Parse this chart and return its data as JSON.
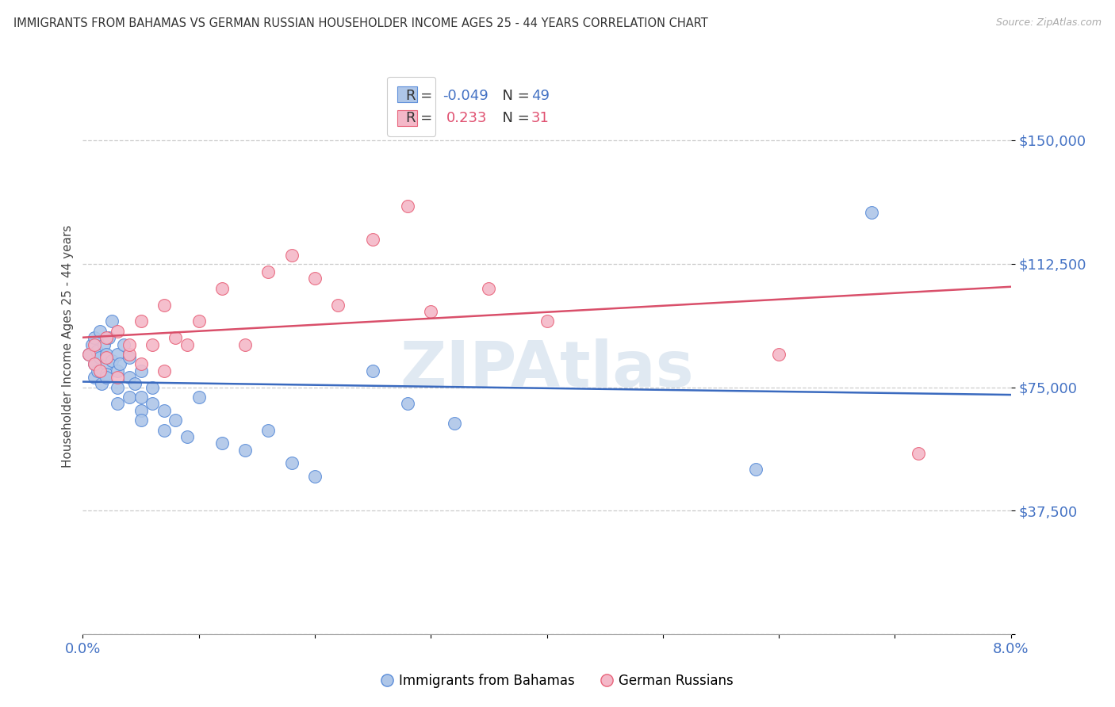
{
  "title": "IMMIGRANTS FROM BAHAMAS VS GERMAN RUSSIAN HOUSEHOLDER INCOME AGES 25 - 44 YEARS CORRELATION CHART",
  "source": "Source: ZipAtlas.com",
  "ylabel": "Householder Income Ages 25 - 44 years",
  "xlim": [
    0.0,
    0.08
  ],
  "ylim": [
    0,
    175000
  ],
  "yticks": [
    0,
    37500,
    75000,
    112500,
    150000
  ],
  "ytick_labels": [
    "",
    "$37,500",
    "$75,000",
    "$112,500",
    "$150,000"
  ],
  "xticks": [
    0.0,
    0.01,
    0.02,
    0.03,
    0.04,
    0.05,
    0.06,
    0.07,
    0.08
  ],
  "xtick_labels": [
    "0.0%",
    "",
    "",
    "",
    "",
    "",
    "",
    "",
    "8.0%"
  ],
  "watermark": "ZIPAtlas",
  "blue_R": -0.049,
  "blue_N": 49,
  "pink_R": 0.233,
  "pink_N": 31,
  "blue_fill": "#aec6e8",
  "pink_fill": "#f4b8c8",
  "blue_edge": "#5b8dd9",
  "pink_edge": "#e8637a",
  "blue_line": "#3a6abf",
  "pink_line": "#d94f6a",
  "scatter_blue_x": [
    0.0005,
    0.0008,
    0.001,
    0.001,
    0.001,
    0.0012,
    0.0013,
    0.0015,
    0.0015,
    0.0016,
    0.0018,
    0.002,
    0.002,
    0.002,
    0.002,
    0.0022,
    0.0025,
    0.0025,
    0.003,
    0.003,
    0.003,
    0.003,
    0.0032,
    0.0035,
    0.004,
    0.004,
    0.004,
    0.0045,
    0.005,
    0.005,
    0.005,
    0.005,
    0.006,
    0.006,
    0.007,
    0.007,
    0.008,
    0.009,
    0.01,
    0.012,
    0.014,
    0.016,
    0.018,
    0.02,
    0.025,
    0.028,
    0.032,
    0.058,
    0.068
  ],
  "scatter_blue_y": [
    85000,
    88000,
    90000,
    82000,
    78000,
    86000,
    80000,
    84000,
    92000,
    76000,
    88000,
    82000,
    79000,
    85000,
    78000,
    90000,
    83000,
    95000,
    85000,
    80000,
    75000,
    70000,
    82000,
    88000,
    78000,
    84000,
    72000,
    76000,
    72000,
    68000,
    80000,
    65000,
    75000,
    70000,
    68000,
    62000,
    65000,
    60000,
    72000,
    58000,
    56000,
    62000,
    52000,
    48000,
    80000,
    70000,
    64000,
    50000,
    128000
  ],
  "scatter_pink_x": [
    0.0005,
    0.001,
    0.001,
    0.0015,
    0.002,
    0.002,
    0.003,
    0.003,
    0.004,
    0.004,
    0.005,
    0.005,
    0.006,
    0.007,
    0.007,
    0.008,
    0.009,
    0.01,
    0.012,
    0.014,
    0.016,
    0.018,
    0.02,
    0.022,
    0.025,
    0.028,
    0.03,
    0.035,
    0.04,
    0.06,
    0.072
  ],
  "scatter_pink_y": [
    85000,
    82000,
    88000,
    80000,
    84000,
    90000,
    78000,
    92000,
    85000,
    88000,
    95000,
    82000,
    88000,
    100000,
    80000,
    90000,
    88000,
    95000,
    105000,
    88000,
    110000,
    115000,
    108000,
    100000,
    120000,
    130000,
    98000,
    105000,
    95000,
    85000,
    55000
  ]
}
